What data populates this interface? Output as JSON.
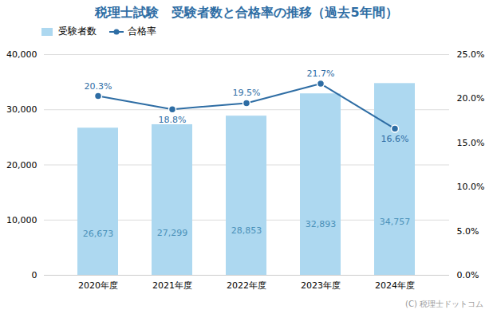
{
  "chart_data": {
    "type": "bar",
    "title": "税理士試験　受験者数と合格率の推移（過去5年間）",
    "categories": [
      "2020年度",
      "2021年度",
      "2022年度",
      "2023年度",
      "2024年度"
    ],
    "series": [
      {
        "name": "受験者数",
        "type": "bar",
        "color": "#add8f0",
        "values": [
          26673,
          27299,
          28853,
          32893,
          34757
        ],
        "value_labels": [
          "26,673",
          "27,299",
          "28,853",
          "32,893",
          "34,757"
        ]
      },
      {
        "name": "合格率",
        "type": "line",
        "axis": "y2",
        "color": "#2e6da4",
        "marker": "circle",
        "values": [
          20.3,
          18.8,
          19.5,
          21.7,
          16.6
        ],
        "value_labels": [
          "20.3%",
          "18.8%",
          "19.5%",
          "21.7%",
          "16.6%"
        ]
      }
    ],
    "ylim": [
      0,
      40000
    ],
    "yticks": [
      0,
      {
        "value": 10000,
        "label": "10,000"
      },
      {
        "value": 20000,
        "label": "20,000"
      },
      {
        "value": 30000,
        "label": "30,000"
      },
      {
        "value": 40000,
        "label": "40,000"
      }
    ],
    "y2lim": [
      0,
      25.0
    ],
    "y2ticks": [
      {
        "value": 0.0,
        "label": "0.0%"
      },
      {
        "value": 5.0,
        "label": "5.0%"
      },
      {
        "value": 10.0,
        "label": "10.0%"
      },
      {
        "value": 15.0,
        "label": "15.0%"
      },
      {
        "value": 20.0,
        "label": "20.0%"
      },
      {
        "value": 25.0,
        "label": "25.0%"
      }
    ],
    "grid": true,
    "legend": "upper left",
    "data_labels": true,
    "annotations": [
      "(C) 税理士ドットコム"
    ]
  }
}
